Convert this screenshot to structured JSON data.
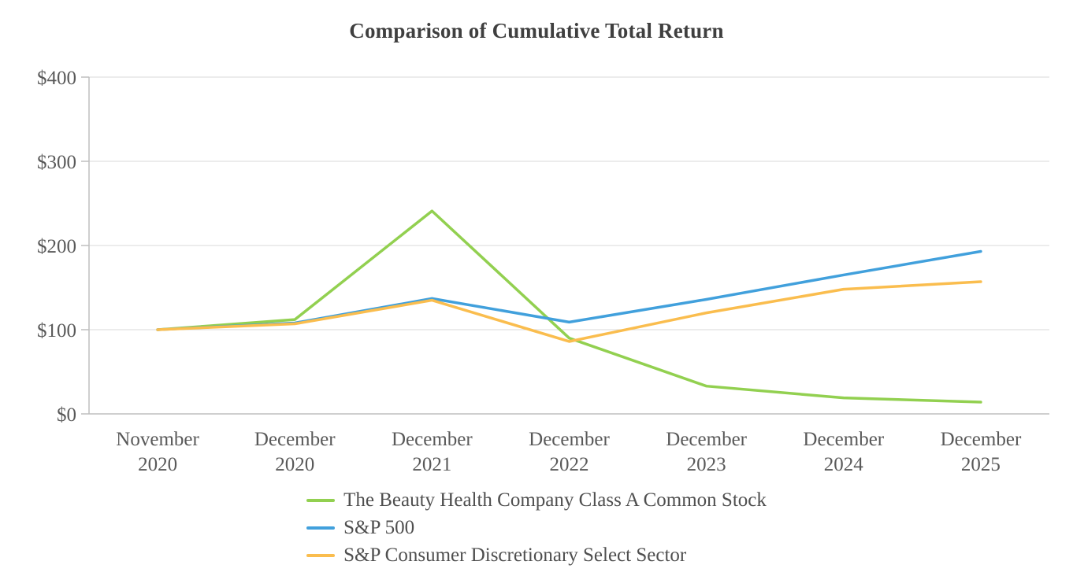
{
  "chart_data": {
    "type": "line",
    "title": "Comparison of Cumulative Total Return",
    "x_categories": [
      [
        "November",
        "2020"
      ],
      [
        "December",
        "2020"
      ],
      [
        "December",
        "2021"
      ],
      [
        "December",
        "2022"
      ],
      [
        "December",
        "2023"
      ],
      [
        "December",
        "2024"
      ],
      [
        "December",
        "2025"
      ]
    ],
    "y_ticks": [
      "$0",
      "$100",
      "$200",
      "$300",
      "$400"
    ],
    "y_tick_values": [
      0,
      100,
      200,
      300,
      400
    ],
    "ylim": [
      0,
      400
    ],
    "grid": true,
    "legend_position": "bottom",
    "series": [
      {
        "name": "The Beauty Health Company Class A Common Stock",
        "color": "#92D050",
        "values": [
          100,
          112,
          241,
          90,
          33,
          19,
          14
        ]
      },
      {
        "name": "S&P 500",
        "color": "#41A0DC",
        "values": [
          100,
          108,
          137,
          109,
          136,
          165,
          193
        ]
      },
      {
        "name": "S&P Consumer Discretionary Select Sector",
        "color": "#FABD4E",
        "values": [
          100,
          107,
          135,
          86,
          120,
          148,
          157
        ]
      }
    ]
  },
  "colors": {
    "grid": "#D9D9D9",
    "axis": "#BFBFBF",
    "tick_text": "#595959",
    "title_text": "#3F3F3F"
  }
}
